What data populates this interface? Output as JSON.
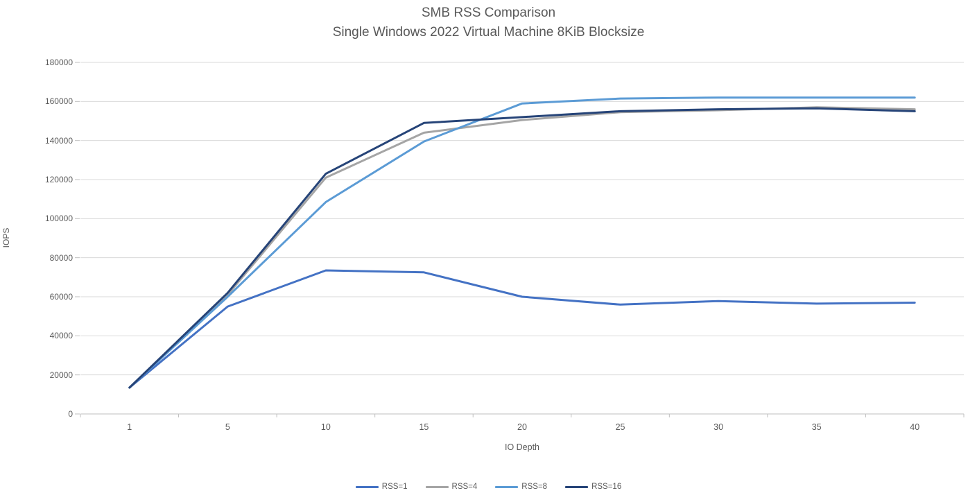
{
  "chart_data": {
    "type": "line",
    "title": "SMB RSS Comparison",
    "subtitle": "Single Windows 2022 Virtual Machine 8KiB Blocksize",
    "xlabel": "IO Depth",
    "ylabel": "IOPS",
    "categories": [
      1,
      5,
      10,
      15,
      20,
      25,
      30,
      35,
      40
    ],
    "y_ticks": [
      0,
      20000,
      40000,
      60000,
      80000,
      100000,
      120000,
      140000,
      160000,
      180000
    ],
    "ylim": [
      0,
      180000
    ],
    "grid": "horizontal",
    "legend_position": "bottom",
    "series": [
      {
        "name": "RSS=1",
        "color": "#4472C4",
        "values": [
          13500,
          55000,
          73500,
          72500,
          60000,
          56000,
          57800,
          56500,
          57000
        ]
      },
      {
        "name": "RSS=4",
        "color": "#A5A5A5",
        "values": [
          13500,
          61000,
          121000,
          144000,
          150500,
          154500,
          155500,
          157000,
          156000
        ]
      },
      {
        "name": "RSS=8",
        "color": "#5B9BD5",
        "values": [
          13500,
          60000,
          108500,
          139500,
          159000,
          161500,
          162000,
          162000,
          162000
        ]
      },
      {
        "name": "RSS=16",
        "color": "#264478",
        "values": [
          13500,
          62000,
          123000,
          149000,
          152000,
          155000,
          156000,
          156500,
          155000
        ]
      }
    ],
    "style": {
      "gridline_color": "#D9D9D9",
      "axis_color": "#BFBFBF",
      "text_color": "#595959",
      "line_width": 3
    }
  }
}
